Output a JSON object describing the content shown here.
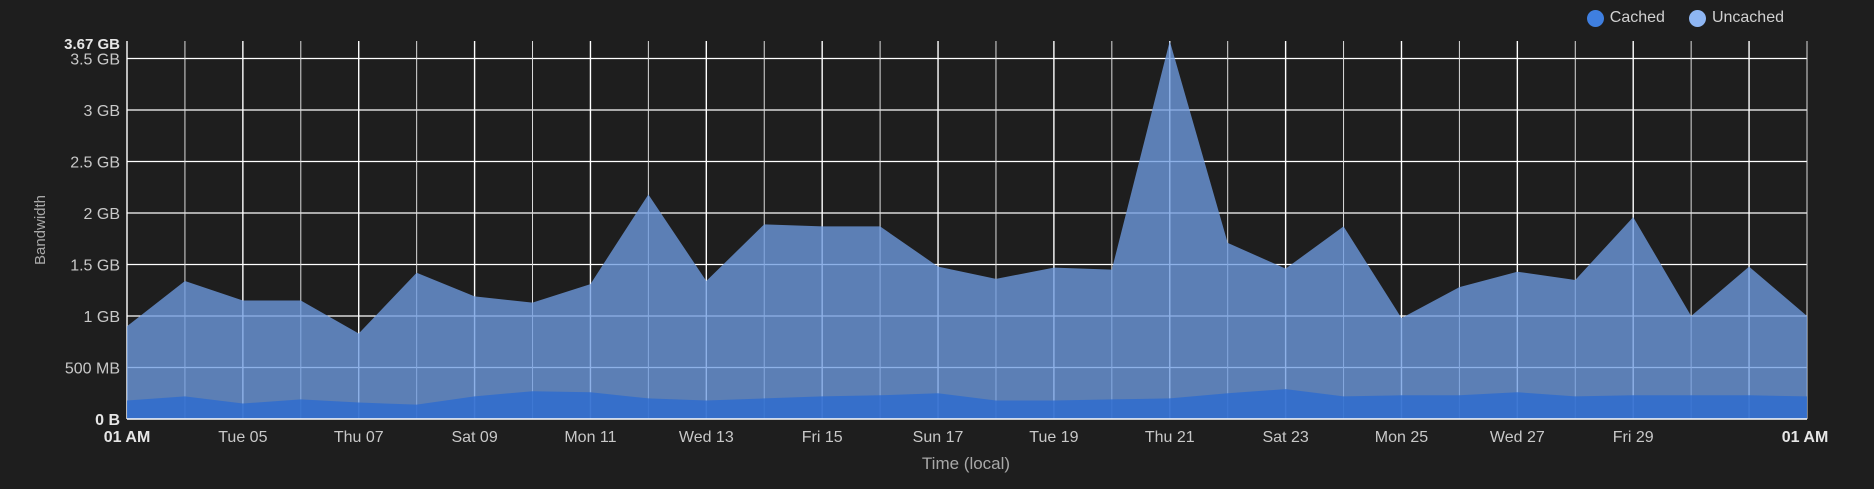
{
  "legend": [
    {
      "name": "Cached",
      "color": "#3f7fe0"
    },
    {
      "name": "Uncached",
      "color": "#8eb6f3"
    }
  ],
  "chart_data": {
    "type": "area",
    "stacked": true,
    "title": "",
    "xlabel": "Time (local)",
    "ylabel": "Bandwidth",
    "ylim_gb": [
      0,
      3.67
    ],
    "y_max_label": "3.67 GB",
    "y_ticks": [
      {
        "value_gb": 0,
        "label": "0 B"
      },
      {
        "value_gb": 0.5,
        "label": "500 MB"
      },
      {
        "value_gb": 1.0,
        "label": "1 GB"
      },
      {
        "value_gb": 1.5,
        "label": "1.5 GB"
      },
      {
        "value_gb": 2.0,
        "label": "2 GB"
      },
      {
        "value_gb": 2.5,
        "label": "2.5 GB"
      },
      {
        "value_gb": 3.0,
        "label": "3 GB"
      },
      {
        "value_gb": 3.5,
        "label": "3.5 GB"
      }
    ],
    "x_ticks": [
      {
        "day": 3,
        "label": "01 AM",
        "bold": true
      },
      {
        "day": 5,
        "label": "Tue 05"
      },
      {
        "day": 7,
        "label": "Thu 07"
      },
      {
        "day": 9,
        "label": "Sat 09"
      },
      {
        "day": 11,
        "label": "Mon 11"
      },
      {
        "day": 13,
        "label": "Wed 13"
      },
      {
        "day": 15,
        "label": "Fri 15"
      },
      {
        "day": 17,
        "label": "Sun 17"
      },
      {
        "day": 19,
        "label": "Tue 19"
      },
      {
        "day": 21,
        "label": "Thu 21"
      },
      {
        "day": 23,
        "label": "Sat 23"
      },
      {
        "day": 25,
        "label": "Mon 25"
      },
      {
        "day": 27,
        "label": "Wed 27"
      },
      {
        "day": 29,
        "label": "Fri 29"
      },
      {
        "day": 32,
        "label": "01 AM",
        "bold": true
      }
    ],
    "x_days": [
      3,
      4,
      5,
      6,
      7,
      8,
      9,
      10,
      11,
      12,
      13,
      14,
      15,
      16,
      17,
      18,
      19,
      20,
      21,
      22,
      23,
      24,
      25,
      26,
      27,
      28,
      29,
      30,
      31,
      32
    ],
    "series": [
      {
        "name": "Cached",
        "unit": "GB",
        "values": [
          0.18,
          0.22,
          0.15,
          0.19,
          0.16,
          0.14,
          0.22,
          0.27,
          0.26,
          0.2,
          0.18,
          0.2,
          0.22,
          0.23,
          0.25,
          0.18,
          0.18,
          0.19,
          0.2,
          0.25,
          0.29,
          0.22,
          0.23,
          0.23,
          0.26,
          0.22,
          0.23,
          0.23,
          0.23,
          0.22
        ]
      },
      {
        "name": "Uncached",
        "unit": "GB",
        "total_values": [
          0.9,
          1.34,
          1.15,
          1.15,
          0.83,
          1.42,
          1.19,
          1.13,
          1.31,
          2.18,
          1.34,
          1.89,
          1.87,
          1.87,
          1.48,
          1.36,
          1.47,
          1.45,
          3.67,
          1.71,
          1.46,
          1.87,
          0.98,
          1.28,
          1.43,
          1.35,
          1.96,
          1.0,
          1.48,
          1.0
        ]
      }
    ]
  }
}
